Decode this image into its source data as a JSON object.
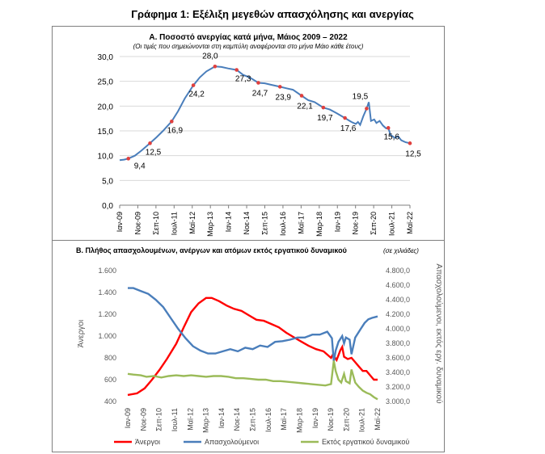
{
  "figure_title": "Γράφημα 1: Εξέλιξη μεγεθών απασχόλησης και ανεργίας",
  "chart_data": [
    {
      "type": "line",
      "title": "Α. Ποσοστό ανεργίας κατά μήνα, Μάιος 2009 – 2022",
      "subtitle": "(Οι τιμές που σημειώνονται στη καμπύλη αναφέρονται στο μήνα Μάιο κάθε έτους)",
      "ylim": [
        0,
        30
      ],
      "yticks": [
        "0,0",
        "5,0",
        "10,0",
        "15,0",
        "20,0",
        "25,0",
        "30,0"
      ],
      "xticks": [
        "Ιαν-09",
        "Νοε-09",
        "Σεπ-10",
        "Ιουλ-11",
        "Μαϊ-12",
        "Μαρ-13",
        "Ιαν-14",
        "Νοε-14",
        "Σεπ-15",
        "Ιουλ-16",
        "Μαϊ-17",
        "Μαρ-18",
        "Ιαν-19",
        "Νοε-19",
        "Σεπ-20",
        "Ιουλ-21",
        "Μαϊ-22"
      ],
      "series_color": "#4a7ebb",
      "marker_color": "#e0403e",
      "line": [
        [
          2009.0,
          9.1
        ],
        [
          2009.2,
          9.2
        ],
        [
          2009.4,
          9.4
        ],
        [
          2009.7,
          10.0
        ],
        [
          2010.0,
          11.0
        ],
        [
          2010.4,
          12.5
        ],
        [
          2010.7,
          13.7
        ],
        [
          2011.0,
          15.0
        ],
        [
          2011.4,
          16.9
        ],
        [
          2011.7,
          19.0
        ],
        [
          2012.0,
          21.5
        ],
        [
          2012.4,
          24.2
        ],
        [
          2012.7,
          25.8
        ],
        [
          2013.0,
          27.0
        ],
        [
          2013.4,
          28.0
        ],
        [
          2013.7,
          27.9
        ],
        [
          2014.0,
          27.6
        ],
        [
          2014.4,
          27.3
        ],
        [
          2014.7,
          26.3
        ],
        [
          2015.0,
          25.8
        ],
        [
          2015.4,
          24.7
        ],
        [
          2015.7,
          24.6
        ],
        [
          2016.0,
          24.3
        ],
        [
          2016.4,
          23.9
        ],
        [
          2016.7,
          23.6
        ],
        [
          2017.0,
          23.3
        ],
        [
          2017.4,
          22.1
        ],
        [
          2017.7,
          21.2
        ],
        [
          2018.0,
          20.8
        ],
        [
          2018.4,
          19.7
        ],
        [
          2018.7,
          19.3
        ],
        [
          2019.0,
          18.6
        ],
        [
          2019.4,
          17.6
        ],
        [
          2019.7,
          16.8
        ],
        [
          2019.9,
          16.4
        ],
        [
          2020.0,
          16.8
        ],
        [
          2020.1,
          16.2
        ],
        [
          2020.25,
          18.0
        ],
        [
          2020.4,
          19.5
        ],
        [
          2020.5,
          20.8
        ],
        [
          2020.6,
          17.0
        ],
        [
          2020.75,
          17.3
        ],
        [
          2020.85,
          16.6
        ],
        [
          2021.0,
          17.0
        ],
        [
          2021.15,
          16.1
        ],
        [
          2021.3,
          15.5
        ],
        [
          2021.4,
          15.6
        ],
        [
          2021.5,
          14.2
        ],
        [
          2021.7,
          13.6
        ],
        [
          2021.85,
          13.9
        ],
        [
          2022.0,
          13.1
        ],
        [
          2022.2,
          12.7
        ],
        [
          2022.4,
          12.5
        ]
      ],
      "markers": [
        {
          "x": 2009.4,
          "y": 9.4,
          "label": "9,4"
        },
        {
          "x": 2010.4,
          "y": 12.5,
          "label": "12,5"
        },
        {
          "x": 2011.4,
          "y": 16.9,
          "label": "16,9"
        },
        {
          "x": 2012.4,
          "y": 24.2,
          "label": "24,2"
        },
        {
          "x": 2013.4,
          "y": 28.0,
          "label": "28,0"
        },
        {
          "x": 2014.4,
          "y": 27.3,
          "label": "27,3"
        },
        {
          "x": 2015.4,
          "y": 24.7,
          "label": "24,7"
        },
        {
          "x": 2016.4,
          "y": 23.9,
          "label": "23,9"
        },
        {
          "x": 2017.4,
          "y": 22.1,
          "label": "22,1"
        },
        {
          "x": 2018.4,
          "y": 19.7,
          "label": "19,7"
        },
        {
          "x": 2019.4,
          "y": 17.6,
          "label": "17,6"
        },
        {
          "x": 2020.4,
          "y": 19.5,
          "label": "19,5"
        },
        {
          "x": 2021.4,
          "y": 15.6,
          "label": "15,6"
        },
        {
          "x": 2022.4,
          "y": 12.5,
          "label": "12,5"
        }
      ]
    },
    {
      "type": "line",
      "title": "Β. Πλήθος απασχολουμένων, ανέργων και ατόμων εκτός εργατικού δυναμικού",
      "title_note": "(σε χιλιάδες)",
      "ylabel_left": "Άνεργοι",
      "ylabel_right": "Απασχολούμενοι, εκτός εργ. δυναμικού",
      "ylim_left": [
        400,
        1600
      ],
      "ylim_right": [
        3000,
        4800
      ],
      "yticks_left": [
        "400",
        "600",
        "800",
        "1.000",
        "1.200",
        "1.400",
        "1.600"
      ],
      "yticks_right": [
        "3.000,0",
        "3.200,0",
        "3.400,0",
        "3.600,0",
        "3.800,0",
        "4.000,0",
        "4.200,0",
        "4.400,0",
        "4.600,0",
        "4.800,0"
      ],
      "xticks": [
        "Ιαν-09",
        "Νοε-09",
        "Σεπ-10",
        "Ιουλ-11",
        "Μαϊ-12",
        "Μαρ-13",
        "Ιαν-14",
        "Νοε-14",
        "Σεπ-15",
        "Ιουλ-16",
        "Μαϊ-17",
        "Μαρ-18",
        "Ιαν-19",
        "Νοε-19",
        "Σεπ-20",
        "Ιουλ-21",
        "Μαϊ-22"
      ],
      "series": [
        {
          "name": "Άνεργοι",
          "color": "#ff0000",
          "axis": "left",
          "points": [
            [
              2009.0,
              460
            ],
            [
              2009.5,
              475
            ],
            [
              2009.9,
              520
            ],
            [
              2010.3,
              600
            ],
            [
              2010.7,
              690
            ],
            [
              2011.1,
              790
            ],
            [
              2011.6,
              930
            ],
            [
              2012.0,
              1080
            ],
            [
              2012.4,
              1220
            ],
            [
              2012.8,
              1300
            ],
            [
              2013.2,
              1350
            ],
            [
              2013.5,
              1350
            ],
            [
              2013.9,
              1320
            ],
            [
              2014.3,
              1280
            ],
            [
              2014.7,
              1250
            ],
            [
              2015.1,
              1230
            ],
            [
              2015.5,
              1190
            ],
            [
              2015.9,
              1150
            ],
            [
              2016.3,
              1140
            ],
            [
              2016.7,
              1110
            ],
            [
              2017.1,
              1080
            ],
            [
              2017.5,
              1030
            ],
            [
              2017.9,
              990
            ],
            [
              2018.3,
              950
            ],
            [
              2018.7,
              910
            ],
            [
              2019.1,
              880
            ],
            [
              2019.5,
              860
            ],
            [
              2019.9,
              800
            ],
            [
              2020.0,
              830
            ],
            [
              2020.2,
              780
            ],
            [
              2020.4,
              870
            ],
            [
              2020.5,
              900
            ],
            [
              2020.6,
              810
            ],
            [
              2020.8,
              790
            ],
            [
              2021.0,
              800
            ],
            [
              2021.2,
              760
            ],
            [
              2021.4,
              720
            ],
            [
              2021.6,
              680
            ],
            [
              2021.8,
              680
            ],
            [
              2022.0,
              640
            ],
            [
              2022.2,
              600
            ],
            [
              2022.4,
              600
            ]
          ]
        },
        {
          "name": "Απασχολούμενοι",
          "color": "#4a7ebb",
          "axis": "right",
          "points": [
            [
              2009.0,
              4560
            ],
            [
              2009.3,
              4560
            ],
            [
              2009.7,
              4520
            ],
            [
              2010.1,
              4480
            ],
            [
              2010.5,
              4400
            ],
            [
              2010.9,
              4300
            ],
            [
              2011.3,
              4150
            ],
            [
              2011.7,
              4000
            ],
            [
              2012.1,
              3870
            ],
            [
              2012.5,
              3760
            ],
            [
              2012.9,
              3700
            ],
            [
              2013.3,
              3660
            ],
            [
              2013.7,
              3660
            ],
            [
              2014.1,
              3690
            ],
            [
              2014.5,
              3720
            ],
            [
              2014.9,
              3690
            ],
            [
              2015.3,
              3740
            ],
            [
              2015.7,
              3720
            ],
            [
              2016.1,
              3770
            ],
            [
              2016.5,
              3750
            ],
            [
              2016.9,
              3820
            ],
            [
              2017.3,
              3830
            ],
            [
              2017.7,
              3850
            ],
            [
              2018.1,
              3880
            ],
            [
              2018.5,
              3880
            ],
            [
              2018.9,
              3920
            ],
            [
              2019.3,
              3920
            ],
            [
              2019.7,
              3960
            ],
            [
              2019.95,
              3870
            ],
            [
              2020.05,
              3550
            ],
            [
              2020.15,
              3700
            ],
            [
              2020.3,
              3820
            ],
            [
              2020.5,
              3900
            ],
            [
              2020.6,
              3800
            ],
            [
              2020.7,
              3880
            ],
            [
              2020.9,
              3850
            ],
            [
              2021.0,
              3650
            ],
            [
              2021.2,
              3880
            ],
            [
              2021.5,
              4000
            ],
            [
              2021.7,
              4080
            ],
            [
              2021.9,
              4130
            ],
            [
              2022.1,
              4150
            ],
            [
              2022.4,
              4170
            ]
          ]
        },
        {
          "name": "Εκτός εργατικού δυναμικού",
          "color": "#9bbb59",
          "axis": "right",
          "points": [
            [
              2009.0,
              3380
            ],
            [
              2009.3,
              3370
            ],
            [
              2009.7,
              3360
            ],
            [
              2010.0,
              3340
            ],
            [
              2010.4,
              3350
            ],
            [
              2010.8,
              3330
            ],
            [
              2011.2,
              3350
            ],
            [
              2011.6,
              3360
            ],
            [
              2012.0,
              3350
            ],
            [
              2012.4,
              3360
            ],
            [
              2012.8,
              3350
            ],
            [
              2013.2,
              3340
            ],
            [
              2013.6,
              3350
            ],
            [
              2014.0,
              3350
            ],
            [
              2014.4,
              3340
            ],
            [
              2014.8,
              3320
            ],
            [
              2015.2,
              3320
            ],
            [
              2015.6,
              3310
            ],
            [
              2016.0,
              3300
            ],
            [
              2016.4,
              3300
            ],
            [
              2016.8,
              3280
            ],
            [
              2017.2,
              3280
            ],
            [
              2017.6,
              3270
            ],
            [
              2018.0,
              3260
            ],
            [
              2018.4,
              3250
            ],
            [
              2018.8,
              3240
            ],
            [
              2019.2,
              3230
            ],
            [
              2019.6,
              3220
            ],
            [
              2019.9,
              3240
            ],
            [
              2020.05,
              3560
            ],
            [
              2020.15,
              3420
            ],
            [
              2020.3,
              3300
            ],
            [
              2020.45,
              3260
            ],
            [
              2020.6,
              3380
            ],
            [
              2020.7,
              3280
            ],
            [
              2020.9,
              3250
            ],
            [
              2021.0,
              3440
            ],
            [
              2021.2,
              3260
            ],
            [
              2021.4,
              3200
            ],
            [
              2021.6,
              3150
            ],
            [
              2021.8,
              3120
            ],
            [
              2022.0,
              3100
            ],
            [
              2022.2,
              3060
            ],
            [
              2022.4,
              3030
            ]
          ]
        }
      ]
    }
  ]
}
